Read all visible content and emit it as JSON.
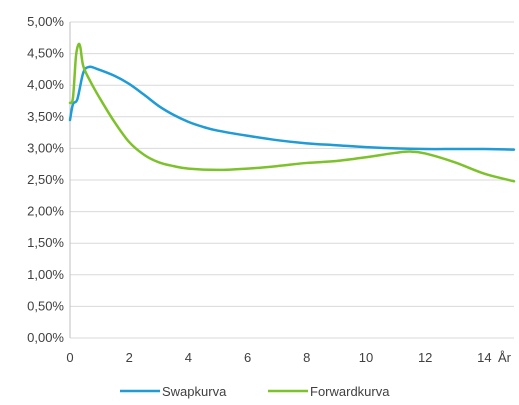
{
  "chart_data": {
    "type": "line",
    "x_unit_label": "År",
    "xlim": [
      0,
      15
    ],
    "x_ticks": [
      0,
      2,
      4,
      6,
      8,
      10,
      12,
      14
    ],
    "ylim": [
      0,
      5
    ],
    "y_ticks": [
      "0,00%",
      "0,50%",
      "1,00%",
      "1,50%",
      "2,00%",
      "2,50%",
      "3,00%",
      "3,50%",
      "4,00%",
      "4,50%",
      "5,00%"
    ],
    "y_tick_values": [
      0,
      0.5,
      1,
      1.5,
      2,
      2.5,
      3,
      3.5,
      4,
      4.5,
      5
    ],
    "grid": "horizontal",
    "legend": "bottom",
    "series": [
      {
        "name": "Swapkurva",
        "color": "#1F9BD6",
        "points": [
          [
            0,
            3.45
          ],
          [
            0.1,
            3.7
          ],
          [
            0.25,
            3.78
          ],
          [
            0.45,
            4.2
          ],
          [
            0.65,
            4.29
          ],
          [
            0.9,
            4.26
          ],
          [
            1.5,
            4.15
          ],
          [
            2,
            4.02
          ],
          [
            2.5,
            3.85
          ],
          [
            3,
            3.67
          ],
          [
            3.5,
            3.53
          ],
          [
            4,
            3.42
          ],
          [
            4.5,
            3.34
          ],
          [
            5,
            3.28
          ],
          [
            6,
            3.2
          ],
          [
            7,
            3.13
          ],
          [
            8,
            3.08
          ],
          [
            9,
            3.05
          ],
          [
            10,
            3.02
          ],
          [
            11,
            3.0
          ],
          [
            12,
            2.99
          ],
          [
            13,
            2.99
          ],
          [
            14,
            2.99
          ],
          [
            15,
            2.98
          ]
        ]
      },
      {
        "name": "Forwardkurva",
        "color": "#7DC22B",
        "points": [
          [
            0,
            3.72
          ],
          [
            0.1,
            3.8
          ],
          [
            0.2,
            4.45
          ],
          [
            0.28,
            4.64
          ],
          [
            0.35,
            4.6
          ],
          [
            0.45,
            4.3
          ],
          [
            0.7,
            4.05
          ],
          [
            1,
            3.8
          ],
          [
            1.5,
            3.42
          ],
          [
            2,
            3.1
          ],
          [
            2.5,
            2.9
          ],
          [
            3,
            2.78
          ],
          [
            3.5,
            2.72
          ],
          [
            4,
            2.68
          ],
          [
            5,
            2.66
          ],
          [
            6,
            2.68
          ],
          [
            7,
            2.72
          ],
          [
            8,
            2.77
          ],
          [
            9,
            2.8
          ],
          [
            10,
            2.86
          ],
          [
            11,
            2.93
          ],
          [
            11.5,
            2.95
          ],
          [
            12,
            2.92
          ],
          [
            13,
            2.78
          ],
          [
            14,
            2.6
          ],
          [
            15,
            2.48
          ]
        ]
      }
    ]
  }
}
